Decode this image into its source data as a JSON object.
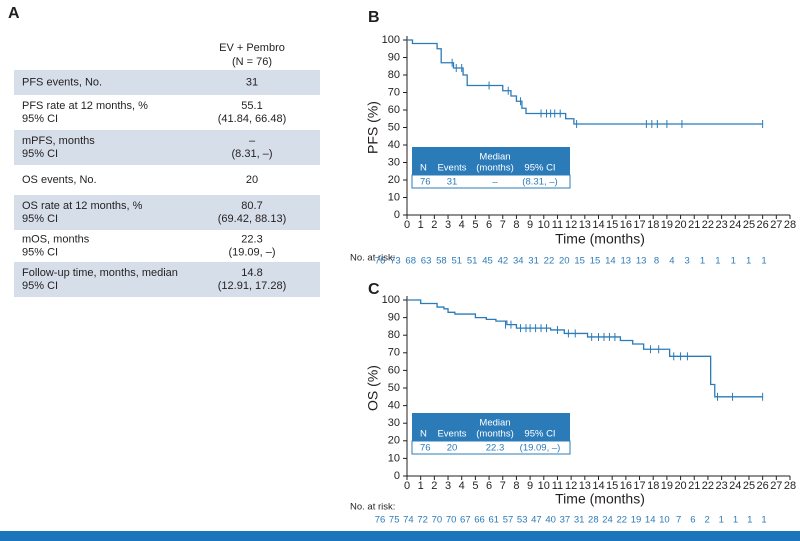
{
  "table": {
    "label": "A",
    "header": [
      "EV + Pembro",
      "(N = 76)"
    ],
    "rows": [
      [
        [
          "PFS events, No."
        ],
        [
          "31"
        ]
      ],
      [
        [
          "PFS rate at 12 months, %",
          "95% CI"
        ],
        [
          "55.1",
          "(41.84, 66.48)"
        ]
      ],
      [
        [
          "mPFS, months",
          "95% CI"
        ],
        [
          "–",
          "(8.31, –)"
        ]
      ],
      [
        [
          "OS events, No."
        ],
        [
          "20"
        ]
      ],
      [
        [
          "OS rate at 12 months, %",
          "95% CI"
        ],
        [
          "80.7",
          "(69.42, 88.13)"
        ]
      ],
      [
        [
          "mOS, months",
          "95% CI"
        ],
        [
          "22.3",
          "(19.09, –)"
        ]
      ],
      [
        [
          "Follow-up time, months, median",
          "95% CI"
        ],
        [
          "14.8",
          "(12.91, 17.28)"
        ]
      ]
    ]
  },
  "chart_data": [
    {
      "type": "step",
      "label": "B",
      "ylabel": "PFS (%)",
      "xlabel": "Time (months)",
      "color": "#2b7bb9",
      "xlim": [
        0,
        28
      ],
      "ylim": [
        0,
        100
      ],
      "xticks": [
        0,
        1,
        2,
        3,
        4,
        5,
        6,
        7,
        8,
        9,
        10,
        11,
        12,
        13,
        14,
        15,
        16,
        17,
        18,
        19,
        20,
        21,
        22,
        23,
        24,
        25,
        26,
        27,
        28
      ],
      "yticks": [
        0,
        10,
        20,
        30,
        40,
        50,
        60,
        70,
        80,
        90,
        100
      ],
      "x": [
        0,
        0.4,
        2.2,
        2.5,
        3.4,
        4.1,
        4.4,
        7.0,
        7.6,
        8.0,
        8.4,
        8.7,
        11.6,
        12.2,
        26.0
      ],
      "values": [
        100,
        98,
        95,
        87,
        84,
        80,
        74,
        71,
        68,
        65,
        61,
        58,
        55,
        52,
        52
      ],
      "censored": {
        "x": [
          3.3,
          3.6,
          4.0,
          6.0,
          7.4,
          8.3,
          9.8,
          10.2,
          10.5,
          10.8,
          11.2,
          12.4,
          17.5,
          17.9,
          18.3,
          19.0,
          20.1,
          26.0
        ],
        "values": [
          87,
          84,
          84,
          74,
          71,
          65,
          58,
          58,
          58,
          58,
          58,
          52,
          52,
          52,
          52,
          52,
          52,
          52
        ]
      },
      "inset": {
        "header": [
          [
            "N"
          ],
          [
            "Events"
          ],
          [
            "Median",
            "(months)"
          ],
          [
            "95% CI"
          ]
        ],
        "row": [
          "76",
          "31",
          "–",
          "(8.31, –)"
        ]
      },
      "risk_label": "No. at risk:",
      "at_risk": [
        76,
        73,
        68,
        63,
        58,
        51,
        51,
        45,
        42,
        34,
        31,
        22,
        20,
        15,
        15,
        14,
        13,
        13,
        8,
        4,
        3,
        1,
        1,
        1,
        1,
        1
      ]
    },
    {
      "type": "step",
      "label": "C",
      "ylabel": "OS (%)",
      "xlabel": "Time (months)",
      "color": "#2b7bb9",
      "xlim": [
        0,
        28
      ],
      "ylim": [
        0,
        100
      ],
      "xticks": [
        0,
        1,
        2,
        3,
        4,
        5,
        6,
        7,
        8,
        9,
        10,
        11,
        12,
        13,
        14,
        15,
        16,
        17,
        18,
        19,
        20,
        21,
        22,
        23,
        24,
        25,
        26,
        27,
        28
      ],
      "yticks": [
        0,
        10,
        20,
        30,
        40,
        50,
        60,
        70,
        80,
        90,
        100
      ],
      "x": [
        0,
        1.0,
        2.2,
        2.7,
        3.0,
        3.5,
        5.0,
        5.8,
        6.5,
        7.3,
        8.0,
        10.5,
        11.5,
        13.2,
        15.6,
        16.5,
        17.3,
        19.2,
        22.2,
        22.5,
        26.0
      ],
      "values": [
        100,
        98,
        96,
        95,
        93,
        92,
        90,
        89,
        88,
        86,
        84,
        83,
        81,
        79,
        77,
        75,
        72,
        68,
        52,
        45,
        45
      ],
      "censored": {
        "x": [
          7.2,
          7.6,
          8.3,
          8.7,
          9.0,
          9.4,
          9.8,
          10.2,
          11.0,
          11.8,
          12.3,
          13.5,
          14.0,
          14.4,
          14.8,
          15.2,
          17.8,
          18.4,
          19.5,
          20.0,
          20.5,
          22.7,
          23.8,
          26.0
        ],
        "values": [
          86,
          86,
          84,
          84,
          84,
          84,
          84,
          84,
          83,
          81,
          81,
          79,
          79,
          79,
          79,
          79,
          72,
          72,
          68,
          68,
          68,
          45,
          45,
          45
        ]
      },
      "inset": {
        "header": [
          [
            "N"
          ],
          [
            "Events"
          ],
          [
            "Median",
            "(months)"
          ],
          [
            "95% CI"
          ]
        ],
        "row": [
          "76",
          "20",
          "22.3",
          "(19.09, –)"
        ]
      },
      "risk_label": "No. at risk:",
      "at_risk": [
        76,
        75,
        74,
        72,
        70,
        70,
        67,
        66,
        61,
        57,
        53,
        47,
        40,
        37,
        31,
        28,
        24,
        22,
        19,
        14,
        10,
        7,
        6,
        2,
        1,
        1,
        1,
        1
      ]
    }
  ]
}
